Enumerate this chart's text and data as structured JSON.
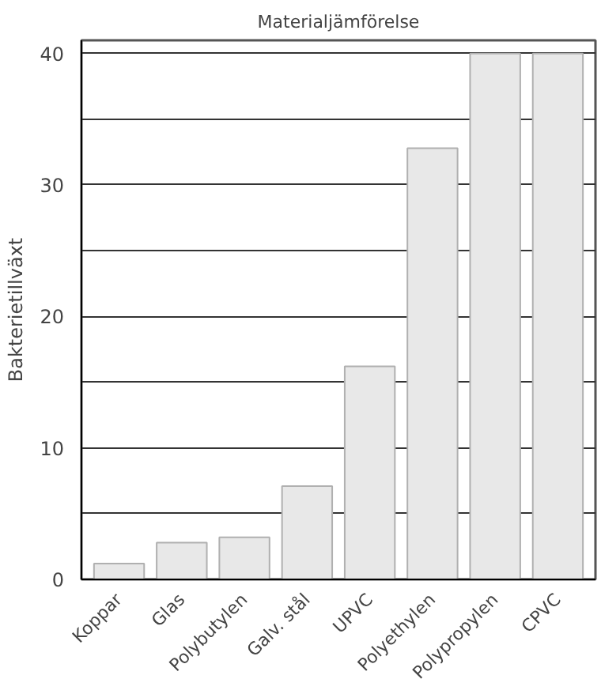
{
  "chart_data": {
    "type": "bar",
    "title": "Materialjämförelse",
    "ylabel": "Bakterietillväxt",
    "categories": [
      "Koppar",
      "Glas",
      "Polybutylen",
      "Galv. stål",
      "UPVC",
      "Polyethylen",
      "Polypropylen",
      "CPVC"
    ],
    "values": [
      1.2,
      2.8,
      3.2,
      7.1,
      16.2,
      32.8,
      40,
      40
    ],
    "color": "#e8e8e8",
    "ylim": [
      0,
      41
    ],
    "yticks": [
      0,
      {
        "value": 5,
        "label": null
      },
      10,
      {
        "value": 15,
        "label": null
      },
      20,
      {
        "value": 25,
        "label": null
      },
      30,
      {
        "value": 35,
        "label": null
      },
      40
    ],
    "grid": "y"
  }
}
